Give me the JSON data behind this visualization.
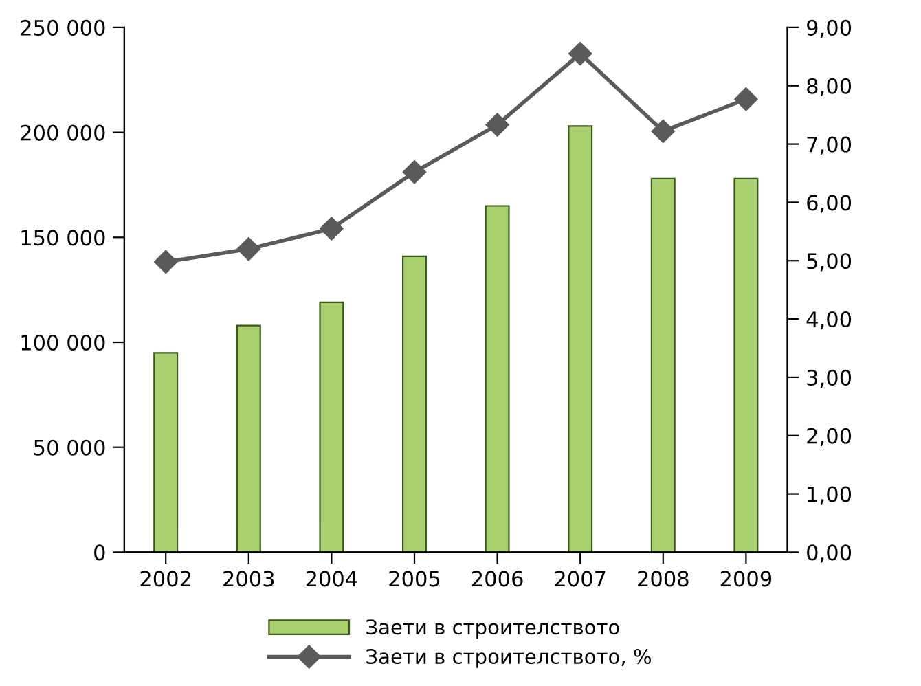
{
  "chart_data": {
    "type": "bar",
    "categories": [
      "2002",
      "2003",
      "2004",
      "2005",
      "2006",
      "2007",
      "2008",
      "2009"
    ],
    "series": [
      {
        "name": "Заети в строителството",
        "color": "#a9d06f",
        "values": [
          95000,
          108000,
          119000,
          141000,
          165000,
          203000,
          178000,
          178000
        ]
      },
      {
        "name": "Заети в строителството, %",
        "type": "line",
        "axis": "y2",
        "color": "#5a5a5a",
        "marker": "diamond",
        "line_style": "solid",
        "values": [
          4.98,
          5.2,
          5.55,
          6.52,
          7.33,
          8.55,
          7.22,
          7.77
        ]
      }
    ],
    "ylim": [
      0,
      250000
    ],
    "yticks": [
      0,
      {
        "value": 50000,
        "label": "50 000"
      },
      {
        "value": 100000,
        "label": "100 000"
      },
      {
        "value": 150000,
        "label": "150 000"
      },
      {
        "value": 200000,
        "label": "200 000"
      },
      {
        "value": 250000,
        "label": "250 000"
      }
    ],
    "y2lim": [
      0,
      9
    ],
    "y2ticks": [
      {
        "value": 0,
        "label": "0,00"
      },
      {
        "value": 1,
        "label": "1,00"
      },
      {
        "value": 2,
        "label": "2,00"
      },
      {
        "value": 3,
        "label": "3,00"
      },
      {
        "value": 4,
        "label": "4,00"
      },
      {
        "value": 5,
        "label": "5,00"
      },
      {
        "value": 6,
        "label": "6,00"
      },
      {
        "value": 7,
        "label": "7,00"
      },
      {
        "value": 8,
        "label": "8,00"
      },
      {
        "value": 9,
        "label": "9,00"
      }
    ],
    "grid": false,
    "legend": "bottom"
  }
}
